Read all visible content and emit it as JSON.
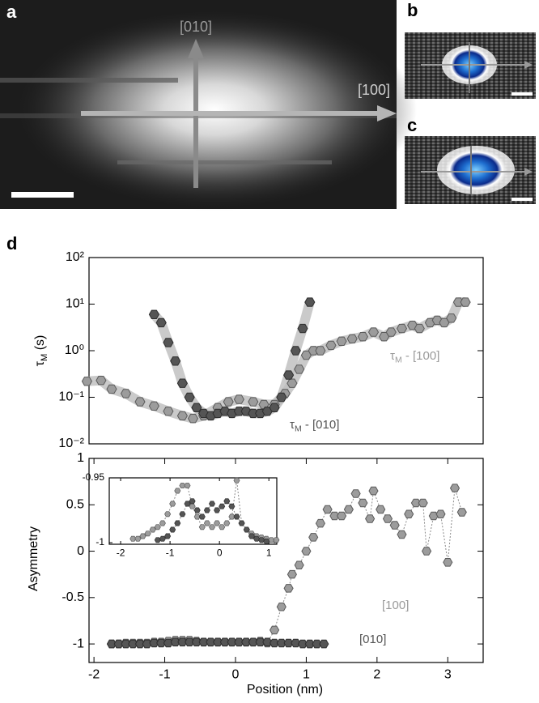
{
  "panels": {
    "a": {
      "label": "a",
      "arrow_labels": [
        "[010]",
        "[100]"
      ]
    },
    "b": {
      "label": "b"
    },
    "c": {
      "label": "c"
    },
    "d": {
      "label": "d"
    }
  },
  "chart_data": [
    {
      "type": "line",
      "ylog": true,
      "band": true,
      "connect": false,
      "ylabel": {
        "symbol": "τ",
        "sub": "M",
        "rest": " (s)"
      },
      "xlim": [
        -2.07,
        3.5
      ],
      "ylim": [
        0.01,
        100
      ],
      "yticks": [
        {
          "value": 0.01,
          "label": "10⁻²"
        },
        {
          "value": 0.1,
          "label": "10⁻¹"
        },
        {
          "value": 1,
          "label": "10⁰"
        },
        {
          "value": 10,
          "label": "10¹"
        },
        {
          "value": 100,
          "label": "10²"
        }
      ],
      "annotations": [
        {
          "symbol": "τ",
          "sub": "M",
          "rest": " - [100]",
          "color": "#9a9a9a"
        },
        {
          "symbol": "τ",
          "sub": "M",
          "rest": " - [010]",
          "color": "#555555"
        }
      ],
      "series": [
        {
          "color": "#9c9c9c",
          "edge_color": "#5a5a5a",
          "x": [
            -2.1,
            -1.9,
            -1.75,
            -1.55,
            -1.35,
            -1.15,
            -0.95,
            -0.75,
            -0.6,
            -0.45,
            -0.25,
            -0.1,
            0.05,
            0.25,
            0.4,
            0.55,
            0.7,
            0.8,
            0.9,
            1.0,
            1.1,
            1.2,
            1.35,
            1.5,
            1.65,
            1.8,
            1.95,
            2.1,
            2.2,
            2.35,
            2.5,
            2.6,
            2.75,
            2.85,
            2.95,
            3.05,
            3.15,
            3.25
          ],
          "values": [
            0.22,
            0.23,
            0.15,
            0.12,
            0.08,
            0.065,
            0.05,
            0.04,
            0.035,
            0.04,
            0.06,
            0.08,
            0.09,
            0.08,
            0.07,
            0.07,
            0.12,
            0.2,
            0.4,
            0.8,
            1.0,
            1.0,
            1.3,
            1.6,
            1.8,
            2.0,
            2.5,
            2.0,
            2.5,
            3.0,
            3.5,
            3.0,
            4.0,
            4.5,
            4.0,
            5.0,
            11,
            11
          ]
        },
        {
          "color": "#555555",
          "edge_color": "#2e2e2e",
          "x": [
            -1.15,
            -1.05,
            -0.95,
            -0.85,
            -0.75,
            -0.65,
            -0.55,
            -0.45,
            -0.35,
            -0.25,
            -0.15,
            -0.05,
            0.05,
            0.15,
            0.25,
            0.35,
            0.45,
            0.55,
            0.65,
            0.75,
            0.85,
            0.95,
            1.05
          ],
          "values": [
            6.0,
            4.0,
            1.5,
            0.6,
            0.2,
            0.1,
            0.06,
            0.045,
            0.04,
            0.045,
            0.05,
            0.045,
            0.05,
            0.05,
            0.045,
            0.045,
            0.05,
            0.06,
            0.1,
            0.3,
            1.0,
            3.0,
            11
          ]
        }
      ]
    },
    {
      "type": "line",
      "ylog": false,
      "band": false,
      "connect": true,
      "ylabel": "Asymmetry",
      "xlabel": "Position (nm)",
      "xlim": [
        -2.07,
        3.5
      ],
      "ylim": [
        -1.2,
        1
      ],
      "xticks": [
        -2,
        -1,
        0,
        1,
        2,
        3
      ],
      "yticks": [
        -1,
        -0.5,
        0,
        0.5,
        1
      ],
      "annotations": [
        {
          "text": "[100]",
          "color": "#9a9a9a"
        },
        {
          "text": "[010]",
          "color": "#555555"
        }
      ],
      "series": [
        {
          "color": "#9c9c9c",
          "edge_color": "#5a5a5a",
          "x": [
            -1.75,
            -1.65,
            -1.55,
            -1.45,
            -1.35,
            -1.25,
            -1.15,
            -1.05,
            -0.95,
            -0.85,
            -0.75,
            -0.65,
            -0.55,
            -0.45,
            -0.35,
            -0.25,
            -0.15,
            -0.05,
            0.05,
            0.15,
            0.25,
            0.35,
            0.45,
            0.55,
            0.65,
            0.75,
            0.8,
            0.9,
            1.0,
            1.1,
            1.2,
            1.3,
            1.4,
            1.5,
            1.6,
            1.7,
            1.8,
            1.9,
            1.95,
            2.05,
            2.15,
            2.25,
            2.35,
            2.45,
            2.55,
            2.65,
            2.7,
            2.8,
            2.9,
            3.0,
            3.1,
            3.2
          ],
          "values": [
            -1,
            -1,
            -0.99,
            -0.99,
            -0.99,
            -0.99,
            -0.98,
            -0.98,
            -0.97,
            -0.96,
            -0.96,
            -0.96,
            -0.97,
            -0.98,
            -0.98,
            -0.98,
            -0.98,
            -0.98,
            -0.98,
            -0.98,
            -0.98,
            -0.97,
            -0.99,
            -0.85,
            -0.6,
            -0.4,
            -0.25,
            -0.15,
            0.0,
            0.15,
            0.3,
            0.45,
            0.38,
            0.38,
            0.45,
            0.62,
            0.52,
            0.35,
            0.65,
            0.45,
            0.35,
            0.28,
            0.18,
            0.4,
            0.52,
            0.52,
            0.0,
            0.38,
            0.4,
            -0.12,
            0.68,
            0.42
          ]
        },
        {
          "color": "#555555",
          "edge_color": "#2e2e2e",
          "x": [
            -1.75,
            -1.65,
            -1.55,
            -1.45,
            -1.35,
            -1.25,
            -1.15,
            -1.05,
            -0.95,
            -0.85,
            -0.75,
            -0.65,
            -0.55,
            -0.45,
            -0.35,
            -0.25,
            -0.15,
            -0.05,
            0.05,
            0.15,
            0.25,
            0.35,
            0.45,
            0.55,
            0.65,
            0.75,
            0.85,
            0.95,
            1.05,
            1.15,
            1.25
          ],
          "values": [
            -1,
            -1,
            -1,
            -1,
            -1,
            -1,
            -0.99,
            -0.99,
            -0.99,
            -0.98,
            -0.98,
            -0.98,
            -0.98,
            -0.98,
            -0.98,
            -0.98,
            -0.98,
            -0.98,
            -0.98,
            -0.98,
            -0.98,
            -0.98,
            -0.98,
            -0.99,
            -0.99,
            -0.99,
            -0.99,
            -1,
            -1,
            -1,
            -1
          ]
        }
      ]
    },
    {
      "type": "line",
      "ylog": false,
      "band": false,
      "connect": true,
      "xlim": [
        -2.23,
        1.16
      ],
      "ylim": [
        -1.00125,
        -0.95
      ],
      "xticks": [
        -2,
        -1,
        0,
        1
      ],
      "yticks": [
        -1,
        -0.95
      ],
      "series": [
        {
          "color": "#9c9c9c",
          "edge_color": "#5a5a5a",
          "x": [
            -1.75,
            -1.65,
            -1.55,
            -1.45,
            -1.35,
            -1.25,
            -1.15,
            -1.05,
            -0.95,
            -0.85,
            -0.75,
            -0.65,
            -0.55,
            -0.45,
            -0.35,
            -0.25,
            -0.15,
            -0.05,
            0.05,
            0.15,
            0.25,
            0.35,
            0.45,
            0.55,
            0.65,
            0.75,
            0.85,
            0.95,
            1.05,
            1.15
          ],
          "values": [
            -0.997,
            -0.997,
            -0.995,
            -0.993,
            -0.99,
            -0.988,
            -0.985,
            -0.978,
            -0.97,
            -0.96,
            -0.956,
            -0.956,
            -0.972,
            -0.98,
            -0.988,
            -0.985,
            -0.988,
            -0.985,
            -0.988,
            -0.985,
            -0.98,
            -0.952,
            -0.985,
            -0.99,
            -0.993,
            -0.995,
            -0.996,
            -0.997,
            -0.998,
            -0.998
          ]
        },
        {
          "color": "#555555",
          "edge_color": "#2e2e2e",
          "x": [
            -1.25,
            -1.15,
            -1.05,
            -0.95,
            -0.85,
            -0.75,
            -0.65,
            -0.55,
            -0.45,
            -0.35,
            -0.25,
            -0.15,
            -0.05,
            0.05,
            0.15,
            0.25,
            0.35,
            0.45,
            0.55,
            0.65,
            0.75,
            0.85,
            0.95
          ],
          "values": [
            -0.998,
            -0.997,
            -0.995,
            -0.99,
            -0.985,
            -0.978,
            -0.97,
            -0.968,
            -0.975,
            -0.98,
            -0.975,
            -0.97,
            -0.975,
            -0.972,
            -0.968,
            -0.972,
            -0.98,
            -0.985,
            -0.99,
            -0.995,
            -0.997,
            -0.998,
            -0.999
          ]
        }
      ]
    }
  ]
}
